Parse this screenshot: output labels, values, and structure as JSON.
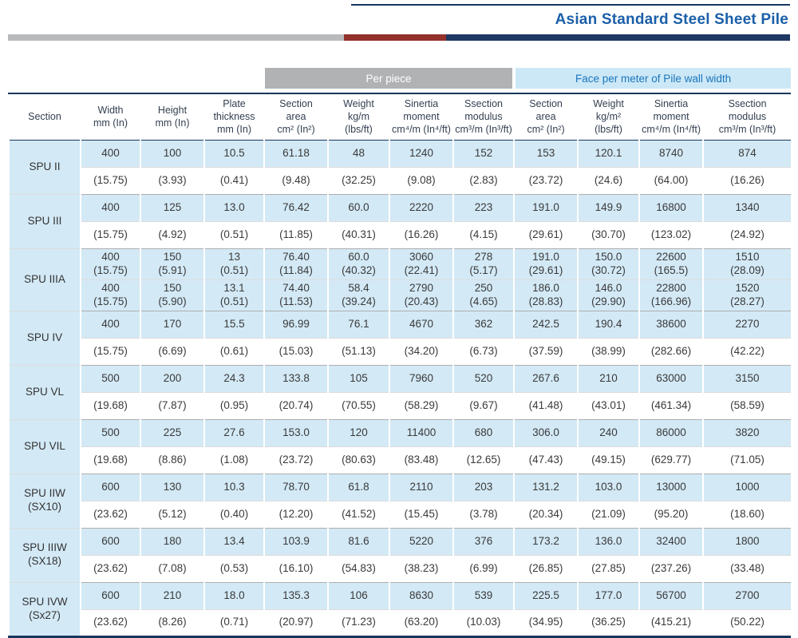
{
  "title": "Asian Standard Steel Sheet Pile",
  "groups": {
    "per_piece": "Per piece",
    "per_meter": "Face per meter of Pile wall width"
  },
  "columns": [
    {
      "key": "section",
      "label": "Section"
    },
    {
      "key": "width",
      "label": "Width\nmm (In)"
    },
    {
      "key": "height",
      "label": "Height\nmm (In)"
    },
    {
      "key": "plate-thickness",
      "label": "Plate\nthickness\nmm (In)"
    },
    {
      "key": "pp-section-area",
      "label": "Section\narea\ncm² (In²)"
    },
    {
      "key": "pp-weight",
      "label": "Weight\nkg/m\n(lbs/ft)"
    },
    {
      "key": "pp-inertia-moment",
      "label": "Sinertia\nmoment\ncm⁴/m (In⁴/ft)"
    },
    {
      "key": "pp-section-modulus",
      "label": "Ssection\nmodulus\ncm³/m (In³/ft)"
    },
    {
      "key": "fm-section-area",
      "label": "Section\narea\ncm² (In²)"
    },
    {
      "key": "fm-weight",
      "label": "Weight\nkg/m²\n(lbs/ft)"
    },
    {
      "key": "fm-inertia-moment",
      "label": "Sinertia\nmoment\ncm⁴/m (In⁴/ft)"
    },
    {
      "key": "fm-section-modulus",
      "label": "Ssection\nmodulus\ncm³/m (In³/ft)"
    }
  ],
  "sections": [
    {
      "name": "SPU II",
      "rows": [
        {
          "type": "metric",
          "cells": [
            "400",
            "100",
            "10.5",
            "61.18",
            "48",
            "1240",
            "152",
            "153",
            "120.1",
            "8740",
            "874"
          ]
        },
        {
          "type": "imperial",
          "cells": [
            "(15.75)",
            "(3.93)",
            "(0.41)",
            "(9.48)",
            "(32.25)",
            "(9.08)",
            "(2.83)",
            "(23.72)",
            "(24.6)",
            "(64.00)",
            "(16.26)"
          ]
        }
      ]
    },
    {
      "name": "SPU III",
      "rows": [
        {
          "type": "metric",
          "cells": [
            "400",
            "125",
            "13.0",
            "76.42",
            "60.0",
            "2220",
            "223",
            "191.0",
            "149.9",
            "16800",
            "1340"
          ]
        },
        {
          "type": "imperial",
          "cells": [
            "(15.75)",
            "(4.92)",
            "(0.51)",
            "(11.85)",
            "(40.31)",
            "(16.26)",
            "(4.15)",
            "(29.61)",
            "(30.70)",
            "(123.02)",
            "(24.92)"
          ]
        }
      ]
    },
    {
      "name": "SPU IIIA",
      "rows": [
        {
          "type": "combined",
          "cells": [
            "400\n(15.75)",
            "150\n(5.91)",
            "13\n(0.51)",
            "76.40\n(11.84)",
            "60.0\n(40.32)",
            "3060\n(22.41)",
            "278\n(5.17)",
            "191.0\n(29.61)",
            "150.0\n(30.72)",
            "22600\n(165.5)",
            "1510\n(28.09)"
          ]
        },
        {
          "type": "combined",
          "cells": [
            "400\n(15.75)",
            "150\n(5.90)",
            "13.1\n(0.51)",
            "74.40\n(11.53)",
            "58.4\n(39.24)",
            "2790\n(20.43)",
            "250\n(4.65)",
            "186.0\n(28.83)",
            "146.0\n(29.90)",
            "22800\n(166.96)",
            "1520\n(28.27)"
          ]
        }
      ]
    },
    {
      "name": "SPU IV",
      "rows": [
        {
          "type": "metric",
          "cells": [
            "400",
            "170",
            "15.5",
            "96.99",
            "76.1",
            "4670",
            "362",
            "242.5",
            "190.4",
            "38600",
            "2270"
          ]
        },
        {
          "type": "imperial",
          "cells": [
            "(15.75)",
            "(6.69)",
            "(0.61)",
            "(15.03)",
            "(51.13)",
            "(34.20)",
            "(6.73)",
            "(37.59)",
            "(38.99)",
            "(282.66)",
            "(42.22)"
          ]
        }
      ]
    },
    {
      "name": "SPU VL",
      "rows": [
        {
          "type": "metric",
          "cells": [
            "500",
            "200",
            "24.3",
            "133.8",
            "105",
            "7960",
            "520",
            "267.6",
            "210",
            "63000",
            "3150"
          ]
        },
        {
          "type": "imperial",
          "cells": [
            "(19.68)",
            "(7.87)",
            "(0.95)",
            "(20.74)",
            "(70.55)",
            "(58.29)",
            "(9.67)",
            "(41.48)",
            "(43.01)",
            "(461.34)",
            "(58.59)"
          ]
        }
      ]
    },
    {
      "name": "SPU VIL",
      "rows": [
        {
          "type": "metric",
          "cells": [
            "500",
            "225",
            "27.6",
            "153.0",
            "120",
            "11400",
            "680",
            "306.0",
            "240",
            "86000",
            "3820"
          ]
        },
        {
          "type": "imperial",
          "cells": [
            "(19.68)",
            "(8.86)",
            "(1.08)",
            "(23.72)",
            "(80.63)",
            "(83.48)",
            "(12.65)",
            "(47.43)",
            "(49.15)",
            "(629.77)",
            "(71.05)"
          ]
        }
      ]
    },
    {
      "name": "SPU IIW\n(SX10)",
      "rows": [
        {
          "type": "metric",
          "cells": [
            "600",
            "130",
            "10.3",
            "78.70",
            "61.8",
            "2110",
            "203",
            "131.2",
            "103.0",
            "13000",
            "1000"
          ]
        },
        {
          "type": "imperial",
          "cells": [
            "(23.62)",
            "(5.12)",
            "(0.40)",
            "(12.20)",
            "(41.52)",
            "(15.45)",
            "(3.78)",
            "(20.34)",
            "(21.09)",
            "(95.20)",
            "(18.60)"
          ]
        }
      ]
    },
    {
      "name": "SPU IIIW\n(SX18)",
      "rows": [
        {
          "type": "metric",
          "cells": [
            "600",
            "180",
            "13.4",
            "103.9",
            "81.6",
            "5220",
            "376",
            "173.2",
            "136.0",
            "32400",
            "1800"
          ]
        },
        {
          "type": "imperial",
          "cells": [
            "(23.62)",
            "(7.08)",
            "(0.53)",
            "(16.10)",
            "(54.83)",
            "(38.23)",
            "(6.99)",
            "(26.85)",
            "(27.85)",
            "(237.26)",
            "(33.48)"
          ]
        }
      ]
    },
    {
      "name": "SPU IVW\n(Sx27)",
      "rows": [
        {
          "type": "metric",
          "cells": [
            "600",
            "210",
            "18.0",
            "135.3",
            "106",
            "8630",
            "539",
            "225.5",
            "177.0",
            "56700",
            "2700"
          ]
        },
        {
          "type": "imperial",
          "cells": [
            "(23.62)",
            "(8.26)",
            "(0.71)",
            "(20.97)",
            "(71.23)",
            "(63.20)",
            "(10.03)",
            "(34.95)",
            "(36.25)",
            "(415.21)",
            "(50.22)"
          ]
        }
      ]
    }
  ]
}
